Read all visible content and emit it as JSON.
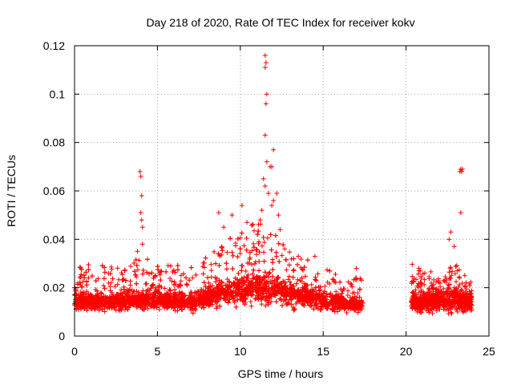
{
  "chart_data": {
    "type": "scatter",
    "title": "Day 218 of 2020, Rate Of TEC Index for receiver kokv",
    "xlabel": "GPS time / hours",
    "ylabel": "ROTI / TECUs",
    "xlim": [
      0,
      25
    ],
    "ylim": [
      0,
      0.12
    ],
    "xticks": [
      0,
      5,
      10,
      15,
      20,
      25
    ],
    "xtick_labels": [
      "0",
      "5",
      "10",
      "15",
      "20",
      "25"
    ],
    "yticks": [
      0,
      0.02,
      0.04,
      0.06,
      0.08,
      0.1,
      0.12
    ],
    "ytick_labels": [
      "0",
      "0.02",
      "0.04",
      "0.06",
      "0.08",
      "0.1",
      "0.12"
    ],
    "grid": true,
    "marker": "+",
    "color": "#ff0000",
    "coverage_hours": [
      [
        0,
        17.4
      ],
      [
        20.3,
        24.0
      ]
    ],
    "envelope": {
      "x": [
        0,
        1,
        2,
        3,
        4,
        5,
        6,
        7,
        8,
        9,
        10,
        11,
        12,
        13,
        14,
        15,
        16,
        17.3,
        20.3,
        21,
        22,
        23,
        24
      ],
      "lower": [
        0.006,
        0.005,
        0.006,
        0.006,
        0.007,
        0.007,
        0.007,
        0.006,
        0.007,
        0.007,
        0.006,
        0.006,
        0.006,
        0.006,
        0.006,
        0.006,
        0.006,
        0.007,
        0.006,
        0.005,
        0.005,
        0.004,
        0.005
      ],
      "median": [
        0.014,
        0.013,
        0.013,
        0.014,
        0.014,
        0.014,
        0.014,
        0.013,
        0.015,
        0.017,
        0.018,
        0.019,
        0.018,
        0.016,
        0.015,
        0.014,
        0.013,
        0.012,
        0.013,
        0.013,
        0.014,
        0.014,
        0.013
      ],
      "upper": [
        0.028,
        0.03,
        0.029,
        0.03,
        0.034,
        0.029,
        0.03,
        0.028,
        0.036,
        0.042,
        0.045,
        0.048,
        0.043,
        0.035,
        0.032,
        0.029,
        0.025,
        0.024,
        0.03,
        0.028,
        0.026,
        0.03,
        0.022
      ]
    },
    "outliers": [
      {
        "x": 3.95,
        "y": 0.068
      },
      {
        "x": 4.0,
        "y": 0.066
      },
      {
        "x": 4.05,
        "y": 0.058
      },
      {
        "x": 4.0,
        "y": 0.051
      },
      {
        "x": 4.05,
        "y": 0.048
      },
      {
        "x": 4.1,
        "y": 0.045
      },
      {
        "x": 4.1,
        "y": 0.038
      },
      {
        "x": 3.8,
        "y": 0.035
      },
      {
        "x": 8.7,
        "y": 0.051
      },
      {
        "x": 9.5,
        "y": 0.05
      },
      {
        "x": 10.1,
        "y": 0.054
      },
      {
        "x": 10.4,
        "y": 0.047
      },
      {
        "x": 9.0,
        "y": 0.045
      },
      {
        "x": 11.5,
        "y": 0.116
      },
      {
        "x": 11.55,
        "y": 0.113
      },
      {
        "x": 11.5,
        "y": 0.111
      },
      {
        "x": 11.6,
        "y": 0.1
      },
      {
        "x": 11.55,
        "y": 0.096
      },
      {
        "x": 11.5,
        "y": 0.083
      },
      {
        "x": 11.6,
        "y": 0.072
      },
      {
        "x": 11.8,
        "y": 0.07
      },
      {
        "x": 11.9,
        "y": 0.07
      },
      {
        "x": 12.0,
        "y": 0.077
      },
      {
        "x": 11.4,
        "y": 0.065
      },
      {
        "x": 11.5,
        "y": 0.062
      },
      {
        "x": 11.7,
        "y": 0.059
      },
      {
        "x": 12.2,
        "y": 0.059
      },
      {
        "x": 12.0,
        "y": 0.056
      },
      {
        "x": 11.3,
        "y": 0.052
      },
      {
        "x": 11.9,
        "y": 0.054
      },
      {
        "x": 12.3,
        "y": 0.05
      },
      {
        "x": 11.2,
        "y": 0.048
      },
      {
        "x": 12.4,
        "y": 0.044
      },
      {
        "x": 13.5,
        "y": 0.033
      },
      {
        "x": 14.5,
        "y": 0.033
      },
      {
        "x": 17.0,
        "y": 0.028
      },
      {
        "x": 22.6,
        "y": 0.04
      },
      {
        "x": 22.7,
        "y": 0.043
      },
      {
        "x": 22.9,
        "y": 0.037
      },
      {
        "x": 23.3,
        "y": 0.051
      },
      {
        "x": 23.25,
        "y": 0.068
      },
      {
        "x": 23.35,
        "y": 0.068
      },
      {
        "x": 23.3,
        "y": 0.069
      },
      {
        "x": 23.4,
        "y": 0.069
      }
    ]
  }
}
